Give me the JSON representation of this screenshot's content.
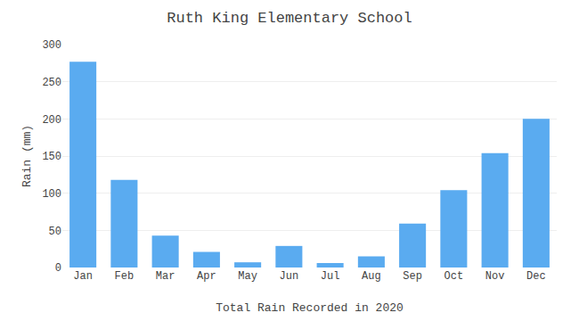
{
  "chart_data": {
    "type": "bar",
    "title": "Ruth King Elementary School",
    "xlabel": "Total Rain Recorded in 2020",
    "ylabel": "Rain (mm)",
    "categories": [
      "Jan",
      "Feb",
      "Mar",
      "Apr",
      "May",
      "Jun",
      "Jul",
      "Aug",
      "Sep",
      "Oct",
      "Nov",
      "Dec"
    ],
    "values": [
      277,
      118,
      43,
      21,
      7,
      29,
      6,
      15,
      59,
      104,
      154,
      200
    ],
    "color": "#5aabf0",
    "ylim": [
      0,
      300
    ],
    "yticks": [
      0,
      50,
      100,
      150,
      200,
      250,
      300
    ],
    "grid": true
  }
}
